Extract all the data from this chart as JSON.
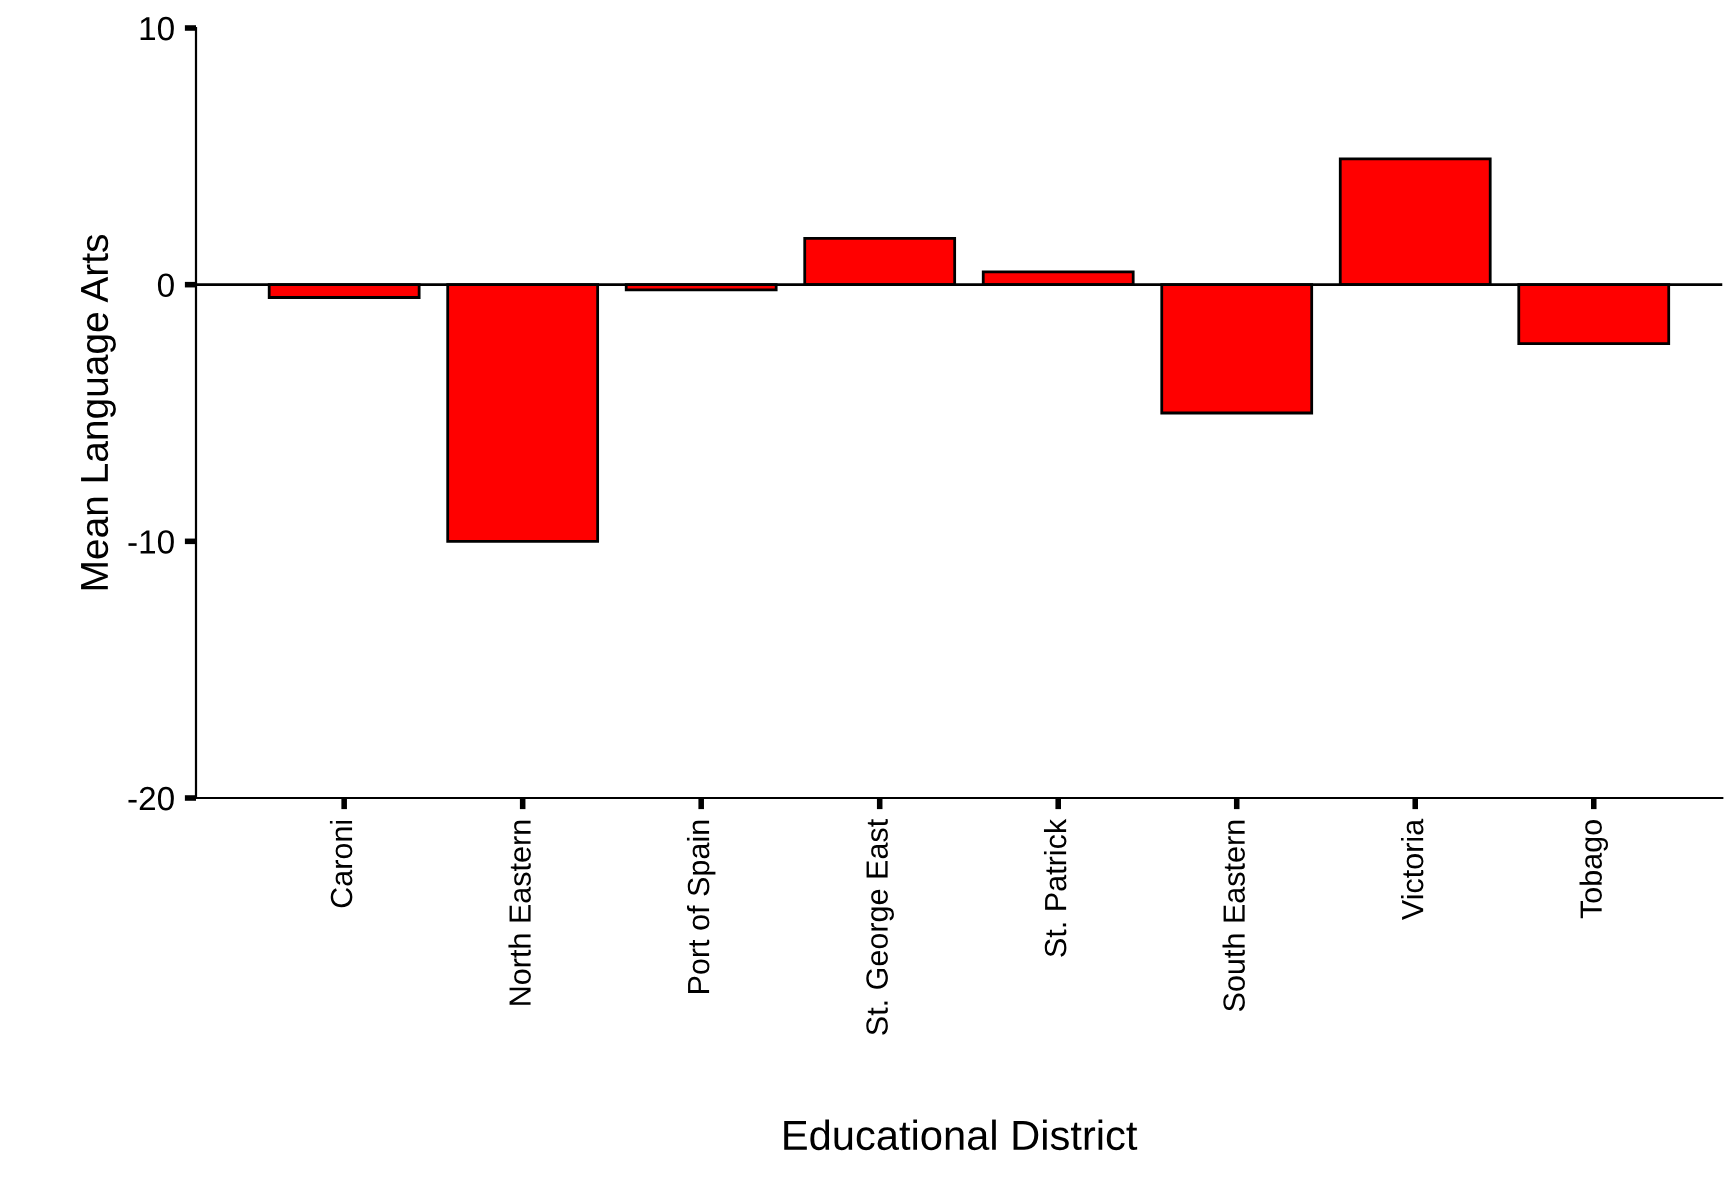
{
  "chart_data": {
    "type": "bar",
    "xlabel": "Educational District",
    "ylabel": "Mean Language Arts",
    "categories": [
      "Caroni",
      "North Eastern",
      "Port of Spain",
      "St. George East",
      "St. Patrick",
      "South Eastern",
      "Victoria",
      "Tobago"
    ],
    "values": [
      -0.5,
      -10.0,
      -0.2,
      1.8,
      0.5,
      -5.0,
      4.9,
      -2.3
    ],
    "color": "#ff0000",
    "ylim": [
      -20,
      10
    ],
    "yticks": [
      -20,
      -10,
      0,
      10
    ],
    "grid": false,
    "ref_lines": [
      {
        "axis": "y",
        "value": 0,
        "label": null,
        "color": "#000000"
      }
    ]
  }
}
